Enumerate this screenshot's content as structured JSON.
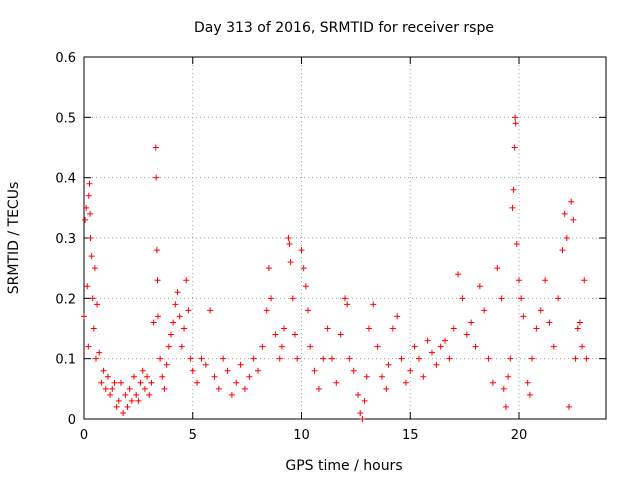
{
  "chart_data": {
    "type": "scatter",
    "title": "Day 313 of 2016, SRMTID for receiver rspe",
    "xlabel": "GPS time / hours",
    "ylabel": "SRMTID / TECUs",
    "xlim": [
      0,
      24
    ],
    "ylim": [
      0,
      0.6
    ],
    "xticks": [
      0,
      5,
      10,
      15,
      20
    ],
    "yticks": [
      0,
      0.1,
      0.2,
      0.3,
      0.4,
      0.5,
      0.6
    ],
    "xtick_labels": [
      "0",
      "5",
      "10",
      "15",
      "20"
    ],
    "ytick_labels": [
      "0",
      "0.1",
      "0.2",
      "0.3",
      "0.4",
      "0.5",
      "0.6"
    ],
    "grid": true,
    "marker": "+",
    "color": "#ff0000",
    "series": [
      {
        "name": "SRMTID",
        "points": [
          [
            0.0,
            0.17
          ],
          [
            0.05,
            0.33
          ],
          [
            0.1,
            0.35
          ],
          [
            0.15,
            0.22
          ],
          [
            0.2,
            0.12
          ],
          [
            0.22,
            0.37
          ],
          [
            0.25,
            0.39
          ],
          [
            0.28,
            0.34
          ],
          [
            0.3,
            0.3
          ],
          [
            0.35,
            0.27
          ],
          [
            0.4,
            0.2
          ],
          [
            0.45,
            0.15
          ],
          [
            0.5,
            0.25
          ],
          [
            0.55,
            0.1
          ],
          [
            0.6,
            0.19
          ],
          [
            0.7,
            0.11
          ],
          [
            0.8,
            0.06
          ],
          [
            0.9,
            0.08
          ],
          [
            1.0,
            0.05
          ],
          [
            1.1,
            0.07
          ],
          [
            1.2,
            0.04
          ],
          [
            1.3,
            0.05
          ],
          [
            1.4,
            0.06
          ],
          [
            1.5,
            0.02
          ],
          [
            1.6,
            0.03
          ],
          [
            1.7,
            0.06
          ],
          [
            1.8,
            0.01
          ],
          [
            1.9,
            0.04
          ],
          [
            2.0,
            0.02
          ],
          [
            2.1,
            0.05
          ],
          [
            2.2,
            0.03
          ],
          [
            2.3,
            0.07
          ],
          [
            2.4,
            0.04
          ],
          [
            2.5,
            0.03
          ],
          [
            2.6,
            0.06
          ],
          [
            2.7,
            0.08
          ],
          [
            2.8,
            0.05
          ],
          [
            2.9,
            0.07
          ],
          [
            3.0,
            0.04
          ],
          [
            3.1,
            0.06
          ],
          [
            3.2,
            0.16
          ],
          [
            3.3,
            0.45
          ],
          [
            3.32,
            0.4
          ],
          [
            3.35,
            0.28
          ],
          [
            3.38,
            0.23
          ],
          [
            3.4,
            0.17
          ],
          [
            3.5,
            0.1
          ],
          [
            3.6,
            0.07
          ],
          [
            3.7,
            0.05
          ],
          [
            3.8,
            0.09
          ],
          [
            3.9,
            0.12
          ],
          [
            4.0,
            0.14
          ],
          [
            4.1,
            0.16
          ],
          [
            4.2,
            0.19
          ],
          [
            4.3,
            0.21
          ],
          [
            4.4,
            0.17
          ],
          [
            4.5,
            0.12
          ],
          [
            4.6,
            0.15
          ],
          [
            4.7,
            0.23
          ],
          [
            4.8,
            0.18
          ],
          [
            4.9,
            0.1
          ],
          [
            5.0,
            0.08
          ],
          [
            5.2,
            0.06
          ],
          [
            5.4,
            0.1
          ],
          [
            5.6,
            0.09
          ],
          [
            5.8,
            0.18
          ],
          [
            6.0,
            0.07
          ],
          [
            6.2,
            0.05
          ],
          [
            6.4,
            0.1
          ],
          [
            6.6,
            0.08
          ],
          [
            6.8,
            0.04
          ],
          [
            7.0,
            0.06
          ],
          [
            7.2,
            0.09
          ],
          [
            7.4,
            0.05
          ],
          [
            7.6,
            0.07
          ],
          [
            7.8,
            0.1
          ],
          [
            8.0,
            0.08
          ],
          [
            8.2,
            0.12
          ],
          [
            8.4,
            0.18
          ],
          [
            8.5,
            0.25
          ],
          [
            8.6,
            0.2
          ],
          [
            8.8,
            0.14
          ],
          [
            9.0,
            0.1
          ],
          [
            9.1,
            0.12
          ],
          [
            9.2,
            0.15
          ],
          [
            9.4,
            0.3
          ],
          [
            9.45,
            0.29
          ],
          [
            9.5,
            0.26
          ],
          [
            9.6,
            0.2
          ],
          [
            9.7,
            0.14
          ],
          [
            9.8,
            0.1
          ],
          [
            10.0,
            0.28
          ],
          [
            10.1,
            0.25
          ],
          [
            10.2,
            0.22
          ],
          [
            10.3,
            0.18
          ],
          [
            10.4,
            0.12
          ],
          [
            10.6,
            0.08
          ],
          [
            10.8,
            0.05
          ],
          [
            11.0,
            0.1
          ],
          [
            11.2,
            0.15
          ],
          [
            11.4,
            0.1
          ],
          [
            11.6,
            0.06
          ],
          [
            11.8,
            0.14
          ],
          [
            12.0,
            0.2
          ],
          [
            12.1,
            0.19
          ],
          [
            12.2,
            0.1
          ],
          [
            12.4,
            0.08
          ],
          [
            12.6,
            0.04
          ],
          [
            12.7,
            0.01
          ],
          [
            12.8,
            0.0
          ],
          [
            12.9,
            0.03
          ],
          [
            13.0,
            0.07
          ],
          [
            13.1,
            0.15
          ],
          [
            13.3,
            0.19
          ],
          [
            13.5,
            0.12
          ],
          [
            13.7,
            0.07
          ],
          [
            13.9,
            0.05
          ],
          [
            14.0,
            0.09
          ],
          [
            14.2,
            0.15
          ],
          [
            14.4,
            0.17
          ],
          [
            14.6,
            0.1
          ],
          [
            14.8,
            0.06
          ],
          [
            15.0,
            0.08
          ],
          [
            15.2,
            0.12
          ],
          [
            15.4,
            0.1
          ],
          [
            15.6,
            0.07
          ],
          [
            15.8,
            0.13
          ],
          [
            16.0,
            0.11
          ],
          [
            16.2,
            0.09
          ],
          [
            16.4,
            0.12
          ],
          [
            16.6,
            0.13
          ],
          [
            16.8,
            0.1
          ],
          [
            17.0,
            0.15
          ],
          [
            17.2,
            0.24
          ],
          [
            17.4,
            0.2
          ],
          [
            17.6,
            0.14
          ],
          [
            17.8,
            0.16
          ],
          [
            18.0,
            0.12
          ],
          [
            18.2,
            0.22
          ],
          [
            18.4,
            0.18
          ],
          [
            18.6,
            0.1
          ],
          [
            18.8,
            0.06
          ],
          [
            19.0,
            0.25
          ],
          [
            19.2,
            0.2
          ],
          [
            19.3,
            0.05
          ],
          [
            19.4,
            0.02
          ],
          [
            19.5,
            0.07
          ],
          [
            19.6,
            0.1
          ],
          [
            19.7,
            0.35
          ],
          [
            19.75,
            0.38
          ],
          [
            19.8,
            0.45
          ],
          [
            19.82,
            0.5
          ],
          [
            19.85,
            0.49
          ],
          [
            19.9,
            0.29
          ],
          [
            20.0,
            0.23
          ],
          [
            20.1,
            0.2
          ],
          [
            20.2,
            0.17
          ],
          [
            20.4,
            0.06
          ],
          [
            20.5,
            0.04
          ],
          [
            20.6,
            0.1
          ],
          [
            20.8,
            0.15
          ],
          [
            21.0,
            0.18
          ],
          [
            21.2,
            0.23
          ],
          [
            21.4,
            0.16
          ],
          [
            21.6,
            0.12
          ],
          [
            21.8,
            0.2
          ],
          [
            22.0,
            0.28
          ],
          [
            22.1,
            0.34
          ],
          [
            22.2,
            0.3
          ],
          [
            22.3,
            0.02
          ],
          [
            22.4,
            0.36
          ],
          [
            22.5,
            0.33
          ],
          [
            22.6,
            0.1
          ],
          [
            22.7,
            0.15
          ],
          [
            22.8,
            0.16
          ],
          [
            22.9,
            0.12
          ],
          [
            23.0,
            0.23
          ],
          [
            23.1,
            0.1
          ]
        ]
      }
    ]
  }
}
